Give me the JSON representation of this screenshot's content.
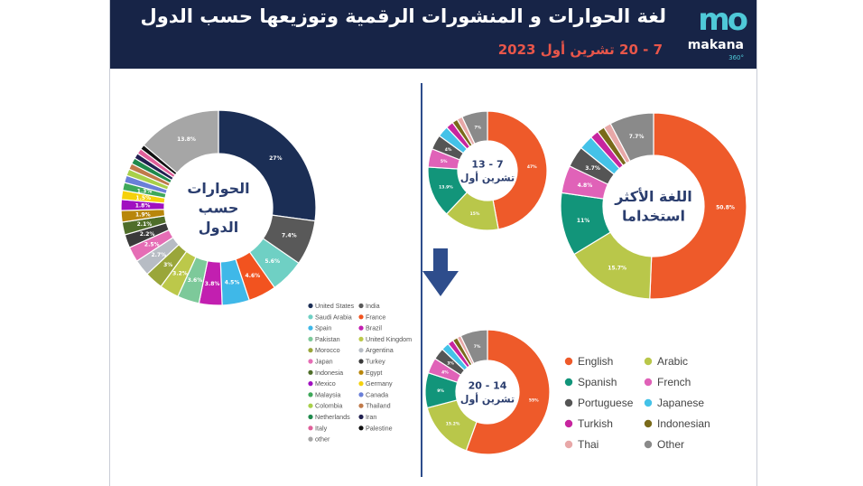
{
  "header": {
    "title": "لغة الحوارات و المنشورات الرقمية وتوزيعها حسب الدول",
    "date": "7 - 20 تشرين أول 2023",
    "logo_mark": "mo",
    "logo_name": "makana",
    "logo_sub": "360°"
  },
  "colors": {
    "banner": "#172447",
    "accent": "#e8564a",
    "logo": "#4fc9d8",
    "divider": "#2e4d8c",
    "arrow": "#2e4d8c"
  },
  "arrow_icon": "down-arrow-icon",
  "chart_data": [
    {
      "type": "pie",
      "title": "الحوارات حسب الدول",
      "legend_position": "bottom",
      "series": [
        {
          "name": "United States",
          "value": 27,
          "label": "27%",
          "color": "#1b2e55"
        },
        {
          "name": "India",
          "value": 7.4,
          "label": "7.4%",
          "color": "#595959"
        },
        {
          "name": "Saudi Arabia",
          "value": 5.6,
          "label": "5.6%",
          "color": "#6fd0c4"
        },
        {
          "name": "France",
          "value": 4.6,
          "label": "4.6%",
          "color": "#f2531f"
        },
        {
          "name": "Spain",
          "value": 4.5,
          "label": "4.5%",
          "color": "#3fb8e8"
        },
        {
          "name": "Brazil",
          "value": 3.8,
          "label": "3.8%",
          "color": "#c21fb0"
        },
        {
          "name": "Pakistan",
          "value": 3.6,
          "label": "3.6%",
          "color": "#7dc99a"
        },
        {
          "name": "United Kingdom",
          "value": 3.2,
          "label": "3.2%",
          "color": "#bcc84a"
        },
        {
          "name": "Morocco",
          "value": 3,
          "label": "3%",
          "color": "#9aa63a"
        },
        {
          "name": "Argentina",
          "value": 2.7,
          "label": "2.7%",
          "color": "#b7bcc4"
        },
        {
          "name": "Japan",
          "value": 2.5,
          "label": "2.5%",
          "color": "#e56db5"
        },
        {
          "name": "Turkey",
          "value": 2.2,
          "label": "2.2%",
          "color": "#3a3a3a"
        },
        {
          "name": "Indonesia",
          "value": 2.1,
          "label": "2.1%",
          "color": "#4f6e2a"
        },
        {
          "name": "Egypt",
          "value": 1.9,
          "label": "1.9%",
          "color": "#b8860b"
        },
        {
          "name": "Mexico",
          "value": 1.8,
          "label": "1.8%",
          "color": "#a010c0"
        },
        {
          "name": "Germany",
          "value": 1.5,
          "label": "1.5%",
          "color": "#f5d10c"
        },
        {
          "name": "Malaysia",
          "value": 1.3,
          "label": "1.3%",
          "color": "#3fa85a"
        },
        {
          "name": "Canada",
          "value": 1.2,
          "label": "",
          "color": "#6a7fd8"
        },
        {
          "name": "Colombia",
          "value": 1.1,
          "label": "",
          "color": "#a8d04a"
        },
        {
          "name": "Thailand",
          "value": 1,
          "label": "",
          "color": "#c07a4a"
        },
        {
          "name": "Netherlands",
          "value": 1,
          "label": "",
          "color": "#1f8a4c"
        },
        {
          "name": "Iran",
          "value": 0.9,
          "label": "",
          "color": "#202050"
        },
        {
          "name": "Italy",
          "value": 0.9,
          "label": "",
          "color": "#e0609a"
        },
        {
          "name": "Palestine",
          "value": 0.8,
          "label": "",
          "color": "#111111"
        },
        {
          "name": "other",
          "value": 13.8,
          "label": "13.8%",
          "color": "#a6a6a6"
        }
      ]
    },
    {
      "type": "pie",
      "title": "اللغة الأكثر استخداما",
      "legend_position": "bottom-right",
      "series": [
        {
          "name": "English",
          "value": 50.8,
          "label": "50.8%",
          "color": "#ee5a2a"
        },
        {
          "name": "Arabic",
          "value": 15.7,
          "label": "15.7%",
          "color": "#b9c74a"
        },
        {
          "name": "Spanish",
          "value": 11,
          "label": "11%",
          "color": "#12957a"
        },
        {
          "name": "French",
          "value": 4.8,
          "label": "4.8%",
          "color": "#e062b8"
        },
        {
          "name": "Portuguese",
          "value": 3.7,
          "label": "3.7%",
          "color": "#555555"
        },
        {
          "name": "Japanese",
          "value": 2.5,
          "label": "",
          "color": "#44c2e8"
        },
        {
          "name": "Turkish",
          "value": 1.5,
          "label": "",
          "color": "#c7259f"
        },
        {
          "name": "Indonesian",
          "value": 1.3,
          "label": "",
          "color": "#7a6a1a"
        },
        {
          "name": "Thai",
          "value": 1.3,
          "label": "",
          "color": "#e8a8a8"
        },
        {
          "name": "Other",
          "value": 7.7,
          "label": "7.7%",
          "color": "#8a8a8a"
        }
      ]
    },
    {
      "type": "pie",
      "title": "7 - 13 تشرين أول",
      "series": [
        {
          "name": "English",
          "value": 47,
          "label": "47%",
          "color": "#ee5a2a"
        },
        {
          "name": "Arabic",
          "value": 15,
          "label": "15%",
          "color": "#b9c74a"
        },
        {
          "name": "Spanish",
          "value": 13.9,
          "label": "13.9%",
          "color": "#12957a"
        },
        {
          "name": "French",
          "value": 5,
          "label": "5%",
          "color": "#e062b8"
        },
        {
          "name": "Portuguese",
          "value": 4,
          "label": "4%",
          "color": "#555555"
        },
        {
          "name": "Japanese",
          "value": 3,
          "label": "",
          "color": "#44c2e8"
        },
        {
          "name": "Turkish",
          "value": 2,
          "label": "",
          "color": "#c7259f"
        },
        {
          "name": "Indonesian",
          "value": 1.5,
          "label": "",
          "color": "#7a6a1a"
        },
        {
          "name": "Thai",
          "value": 1.5,
          "label": "",
          "color": "#e8a8a8"
        },
        {
          "name": "Other",
          "value": 7,
          "label": "7%",
          "color": "#8a8a8a"
        }
      ]
    },
    {
      "type": "pie",
      "title": "14 - 20 تشرين أول",
      "series": [
        {
          "name": "English",
          "value": 55,
          "label": "55%",
          "color": "#ee5a2a"
        },
        {
          "name": "Arabic",
          "value": 15.2,
          "label": "15.2%",
          "color": "#b9c74a"
        },
        {
          "name": "Spanish",
          "value": 9,
          "label": "9%",
          "color": "#12957a"
        },
        {
          "name": "French",
          "value": 4,
          "label": "4%",
          "color": "#e062b8"
        },
        {
          "name": "Portuguese",
          "value": 3,
          "label": "3%",
          "color": "#555555"
        },
        {
          "name": "Japanese",
          "value": 2,
          "label": "",
          "color": "#44c2e8"
        },
        {
          "name": "Turkish",
          "value": 1.5,
          "label": "",
          "color": "#c7259f"
        },
        {
          "name": "Indonesian",
          "value": 1.3,
          "label": "",
          "color": "#7a6a1a"
        },
        {
          "name": "Thai",
          "value": 1,
          "label": "",
          "color": "#e8a8a8"
        },
        {
          "name": "Other",
          "value": 7,
          "label": "7%",
          "color": "#8a8a8a"
        }
      ]
    }
  ]
}
